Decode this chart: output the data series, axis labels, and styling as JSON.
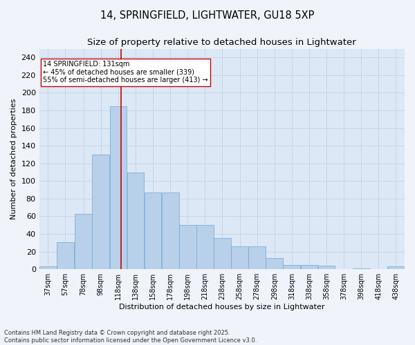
{
  "title_line1": "14, SPRINGFIELD, LIGHTWATER, GU18 5XP",
  "title_line2": "Size of property relative to detached houses in Lightwater",
  "xlabel": "Distribution of detached houses by size in Lightwater",
  "ylabel": "Number of detached properties",
  "bar_color": "#b8d0ea",
  "bar_edge_color": "#6fa8d0",
  "background_color": "#dce8f5",
  "annotation_text": "14 SPRINGFIELD: 131sqm\n← 45% of detached houses are smaller (339)\n55% of semi-detached houses are larger (413) →",
  "vline_x": 131,
  "vline_color": "#cc0000",
  "bin_starts": [
    37,
    57,
    78,
    98,
    118,
    138,
    158,
    178,
    198,
    218,
    238,
    258,
    278,
    298,
    318,
    338,
    358,
    378,
    398,
    418,
    438
  ],
  "bin_width": 20,
  "bar_heights": [
    3,
    31,
    63,
    130,
    185,
    110,
    87,
    87,
    50,
    50,
    35,
    26,
    26,
    13,
    5,
    5,
    4,
    0,
    1,
    0,
    3
  ],
  "ylim": [
    0,
    250
  ],
  "yticks": [
    0,
    20,
    40,
    60,
    80,
    100,
    120,
    140,
    160,
    180,
    200,
    220,
    240
  ],
  "xlim_left": 37,
  "xlim_right": 458,
  "footnote": "Contains HM Land Registry data © Crown copyright and database right 2025.\nContains public sector information licensed under the Open Government Licence v3.0.",
  "grid_color": "#c5d5e8",
  "title_fontsize": 10.5,
  "subtitle_fontsize": 9.5,
  "axis_label_fontsize": 8,
  "tick_fontsize": 7,
  "ann_fontsize": 7,
  "footnote_fontsize": 6,
  "ann_box_color": "#ffffff",
  "ann_box_edge_color": "#cc0000",
  "fig_bg": "#f0f4fa"
}
